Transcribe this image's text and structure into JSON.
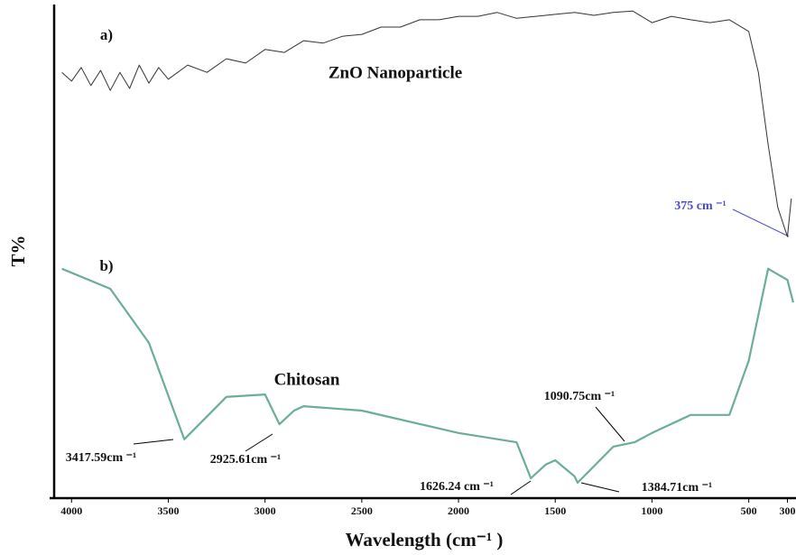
{
  "chart_data": {
    "type": "line",
    "xlabel": "Wavelength (cm⁻¹ )",
    "ylabel": "T%",
    "xlim": [
      4090,
      265
    ],
    "ylim": [
      0,
      100
    ],
    "xticks": [
      4000,
      3500,
      3000,
      2500,
      2000,
      1500,
      1000,
      500,
      300
    ],
    "series": [
      {
        "name": "ZnO Nanoparticle",
        "tag": "a)",
        "color": "#333333",
        "x": [
          4050,
          4000,
          3950,
          3900,
          3850,
          3800,
          3750,
          3700,
          3650,
          3600,
          3550,
          3500,
          3400,
          3300,
          3200,
          3100,
          3000,
          2900,
          2800,
          2700,
          2600,
          2500,
          2400,
          2300,
          2200,
          2100,
          2000,
          1900,
          1800,
          1700,
          1600,
          1500,
          1400,
          1300,
          1200,
          1100,
          1000,
          900,
          800,
          700,
          600,
          500,
          450,
          400,
          350,
          300,
          280
        ],
        "values": [
          87.0,
          85.2,
          88.0,
          84.3,
          87.4,
          83.3,
          87.0,
          83.7,
          88.5,
          84.8,
          88.0,
          85.6,
          88.5,
          87.0,
          89.8,
          88.9,
          91.7,
          91.1,
          93.5,
          93.0,
          94.4,
          94.8,
          96.3,
          96.3,
          97.8,
          97.8,
          98.5,
          98.5,
          99.3,
          98.1,
          98.5,
          98.9,
          99.3,
          98.7,
          99.3,
          99.6,
          97.2,
          98.5,
          97.8,
          97.2,
          97.8,
          95.4,
          87.0,
          72.2,
          59.3,
          53.3,
          61.1
        ]
      },
      {
        "name": "Chitosan",
        "tag": "b)",
        "color": "#6aae96",
        "x": [
          4050,
          3800,
          3600,
          3417.59,
          3200,
          3000,
          2925.61,
          2850,
          2800,
          2500,
          2000,
          1700,
          1626.24,
          1550,
          1500,
          1400,
          1384.71,
          1200,
          1090.75,
          1000,
          800,
          600,
          500,
          400,
          300,
          270
        ],
        "values": [
          46.7,
          42.6,
          31.5,
          11.7,
          20.4,
          20.9,
          14.8,
          17.6,
          18.5,
          17.6,
          13.0,
          11.1,
          3.7,
          6.5,
          7.4,
          4.1,
          2.8,
          10.2,
          11.1,
          13.0,
          16.7,
          16.7,
          27.8,
          46.7,
          44.4,
          39.8
        ]
      }
    ],
    "annotations": [
      "375 cm ⁻¹",
      "3417.59cm ⁻¹",
      "2925.61cm ⁻¹",
      "1626.24 cm ⁻¹",
      "1384.71cm ⁻¹",
      "1090.75cm ⁻¹"
    ]
  }
}
